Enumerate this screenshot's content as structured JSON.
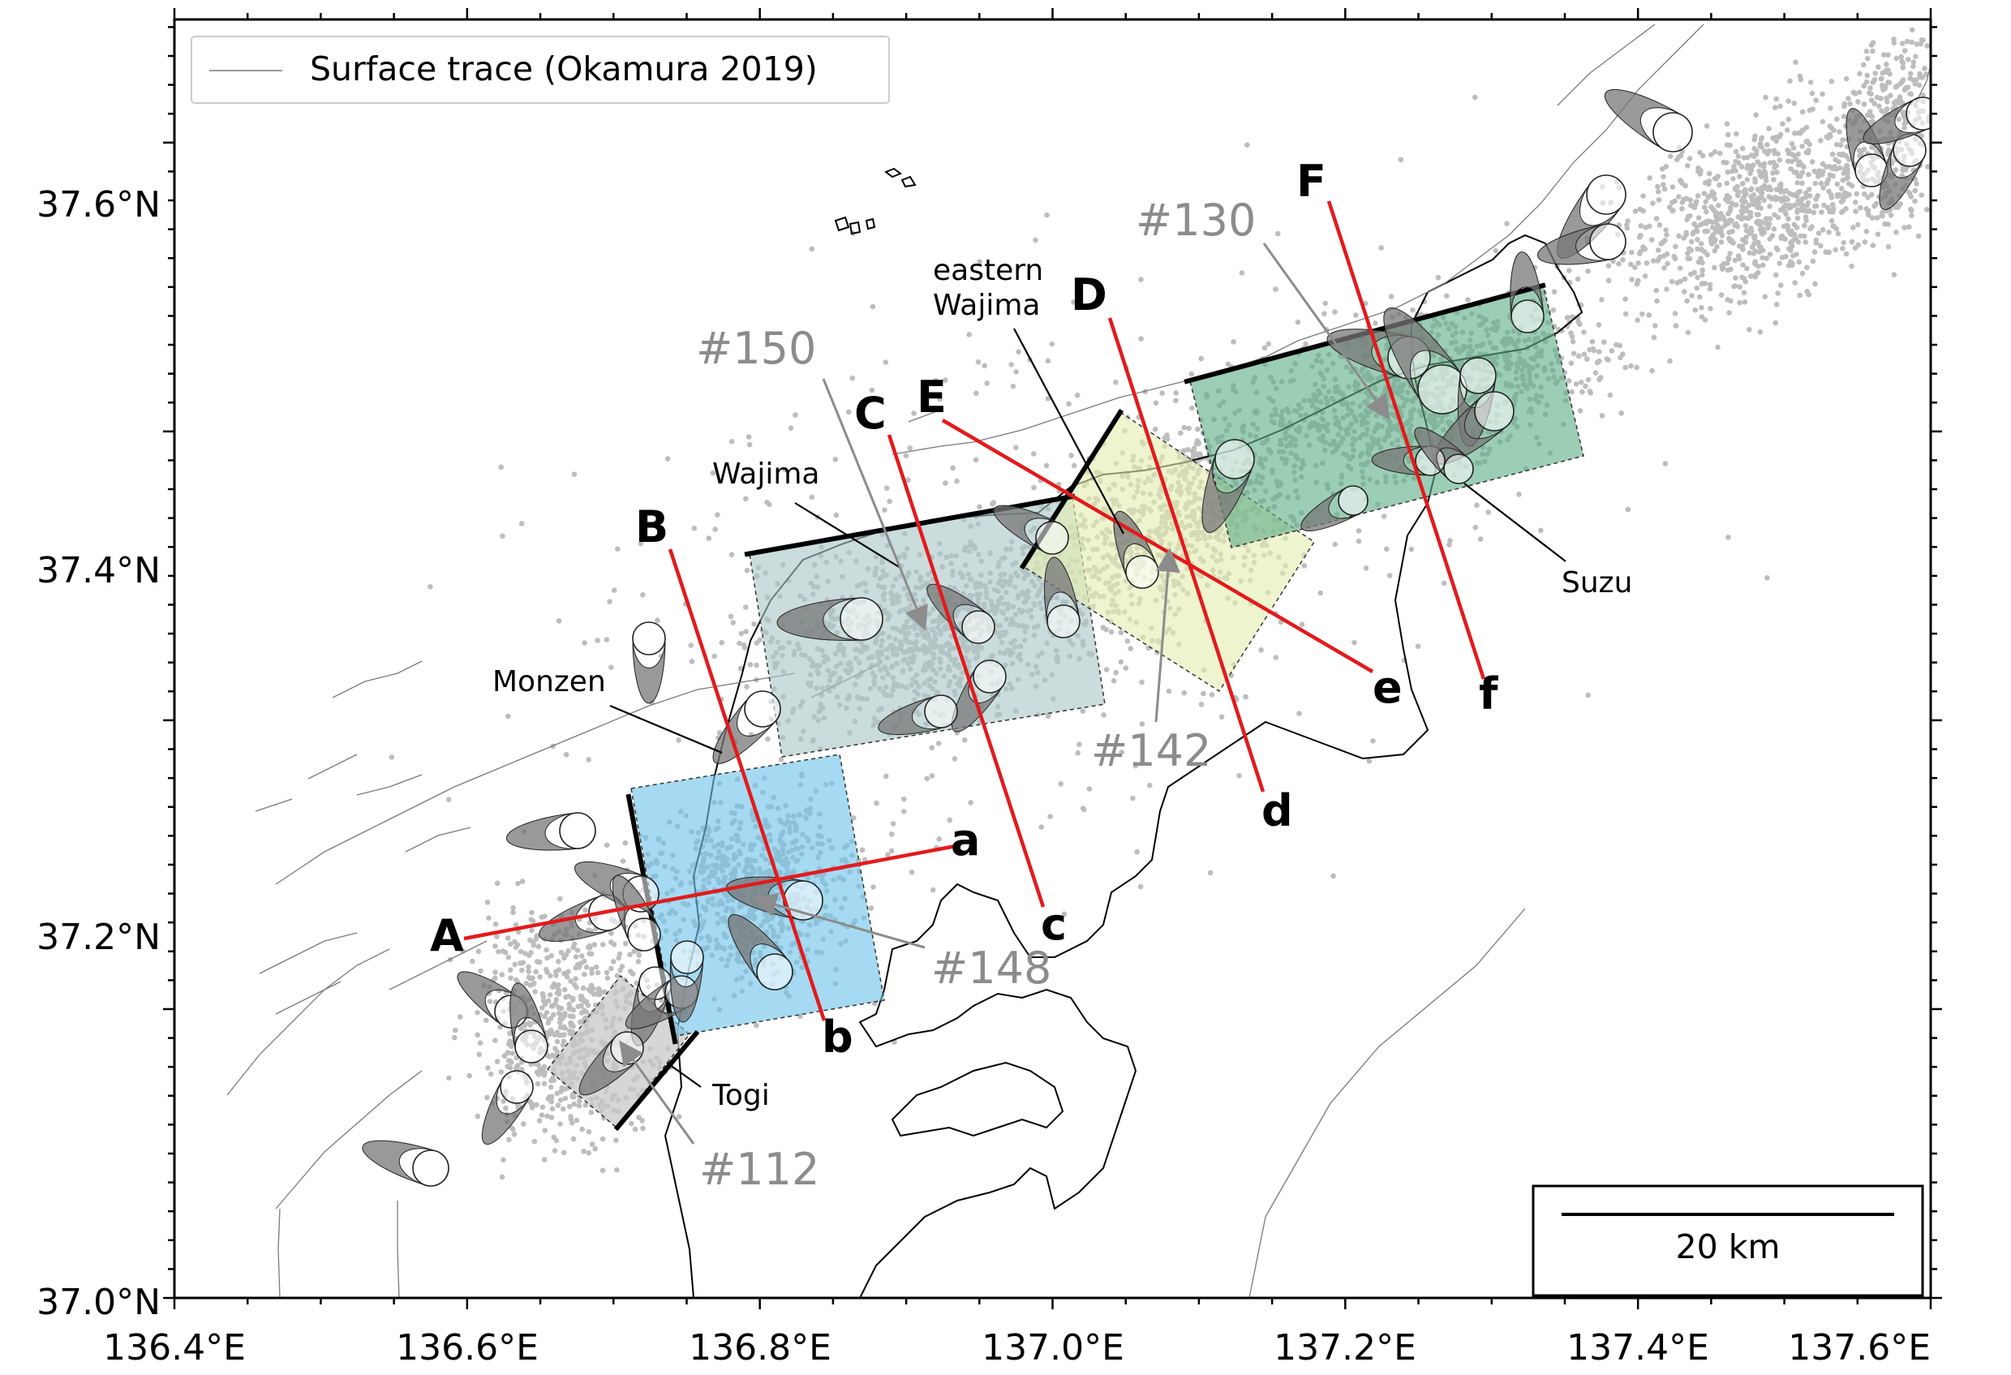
{
  "legend": {
    "label": "Surface trace (Okamura 2019)"
  },
  "scale_bar": {
    "label": "20 km"
  },
  "axes": {
    "x_ticks": [
      "136.4°E",
      "136.6°E",
      "136.8°E",
      "137.0°E",
      "137.2°E",
      "137.4°E",
      "137.6°E"
    ],
    "y_ticks": [
      "37.6°N",
      "37.4°N",
      "37.2°N",
      "37.0°N"
    ]
  },
  "place_labels": {
    "wajima": "Wajima",
    "eastern_wajima_1": "eastern",
    "eastern_wajima_2": "Wajima",
    "monzen": "Monzen",
    "togi": "Togi",
    "suzu": "Suzu"
  },
  "event_labels": {
    "e150": "#150",
    "e130": "#130",
    "e142": "#142",
    "e148": "#148",
    "e112": "#112"
  },
  "profile_labels": {
    "A": "A",
    "a": "a",
    "B": "B",
    "b": "b",
    "C": "C",
    "c": "c",
    "D": "D",
    "d": "d",
    "E": "E",
    "e": "e",
    "F": "F",
    "f": "f"
  },
  "colors": {
    "profile_line": "#e31a1c",
    "fault_segment": "#000000",
    "seismicity": "#bdbdbd",
    "patch_togi": "#c8c8c8",
    "patch_monzen": "#6ec3ea",
    "patch_wajima": "#a9c6c6",
    "patch_eastern_wajima": "#e3eeb0",
    "patch_suzu": "#5fae88",
    "annotation_gray": "#8c8c8c"
  }
}
